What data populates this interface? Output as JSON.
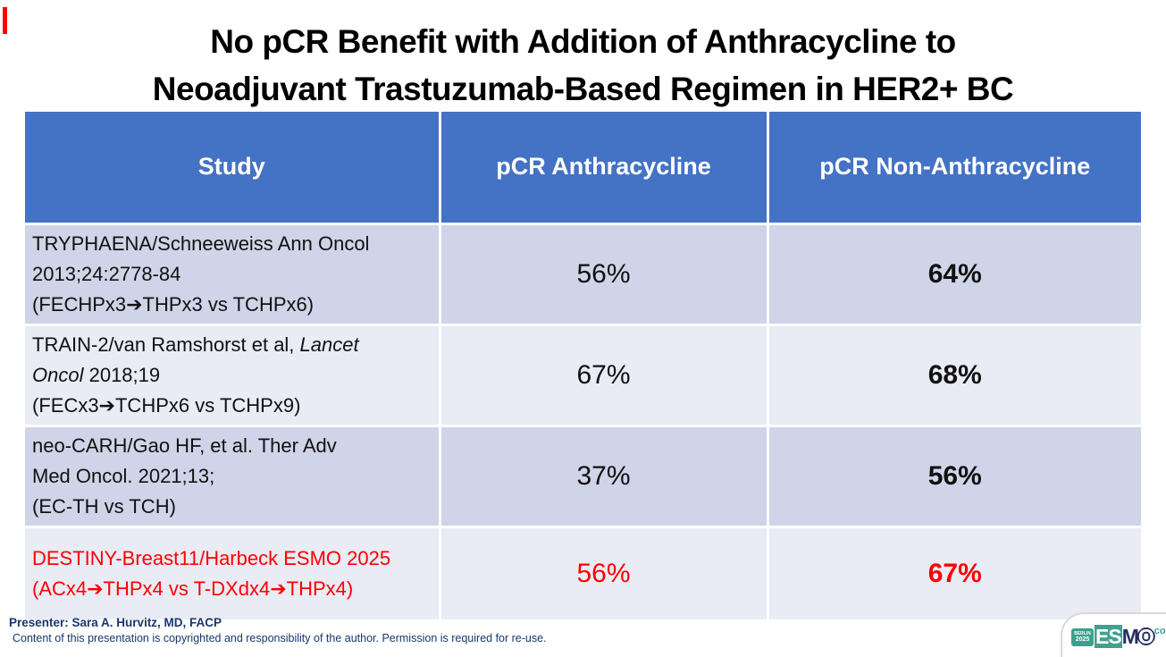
{
  "slide": {
    "title_line1": "No pCR Benefit with Addition of Anthracycline to",
    "title_line2": "Neoadjuvant Trastuzumab-Based Regimen in HER2+ BC"
  },
  "table": {
    "headers": [
      "Study",
      "pCR Anthracycline",
      "pCR Non-Anthracycline"
    ],
    "rows": [
      {
        "study_lines": [
          [
            {
              "text": "TRYPHAENA/Schneeweiss Ann Oncol"
            }
          ],
          [
            {
              "text": "2013;24:2778-84"
            }
          ],
          [
            {
              "text": "(FECHPx3➔THPx3 vs TCHPx6)"
            }
          ]
        ],
        "pcr_anthracycline": "56%",
        "pcr_non_anthracycline": "64%",
        "highlight": false
      },
      {
        "study_lines": [
          [
            {
              "text": "TRAIN-2/van Ramshorst et al, "
            },
            {
              "text": "Lancet",
              "italic": true
            }
          ],
          [
            {
              "text": "Oncol",
              "italic": true
            },
            {
              "text": " 2018;19"
            }
          ],
          [
            {
              "text": "(FECx3➔TCHPx6 vs TCHPx9)"
            }
          ]
        ],
        "pcr_anthracycline": "67%",
        "pcr_non_anthracycline": "68%",
        "highlight": false
      },
      {
        "study_lines": [
          [
            {
              "text": "neo-CARH/Gao HF, et al. Ther Adv"
            }
          ],
          [
            {
              "text": "Med Oncol. 2021;13;"
            }
          ],
          [
            {
              "text": "(EC-TH vs TCH)"
            }
          ]
        ],
        "pcr_anthracycline": "37%",
        "pcr_non_anthracycline": "56%",
        "highlight": false
      },
      {
        "study_lines": [
          [
            {
              "text": "DESTINY-Breast11/Harbeck ESMO 2025"
            }
          ],
          [
            {
              "text": "(ACx4➔THPx4 vs T-DXdx4➔THPx4)"
            }
          ]
        ],
        "pcr_anthracycline": "56%",
        "pcr_non_anthracycline": "67%",
        "highlight": true
      }
    ]
  },
  "footer": {
    "presenter": "Presenter: Sara A. Hurvitz, MD, FACP",
    "copyright": "Content of this presentation is copyrighted and responsibility of the author. Permission is required for re-use."
  },
  "logo": {
    "badge_line1": "BERLIN",
    "badge_line2": "2025",
    "esmo_es": "ES",
    "esmo_m": "M",
    "esmo_o": "O",
    "congress": "congress"
  },
  "colors": {
    "header_blue": "#4472c4",
    "row_band_dark": "#cfd4e8",
    "row_band_light": "#e9ebf5",
    "highlight_red": "#fe0000",
    "footer_navy": "#17376e",
    "esmo_teal": "#3ba08e",
    "esmo_navy": "#262d5e"
  }
}
